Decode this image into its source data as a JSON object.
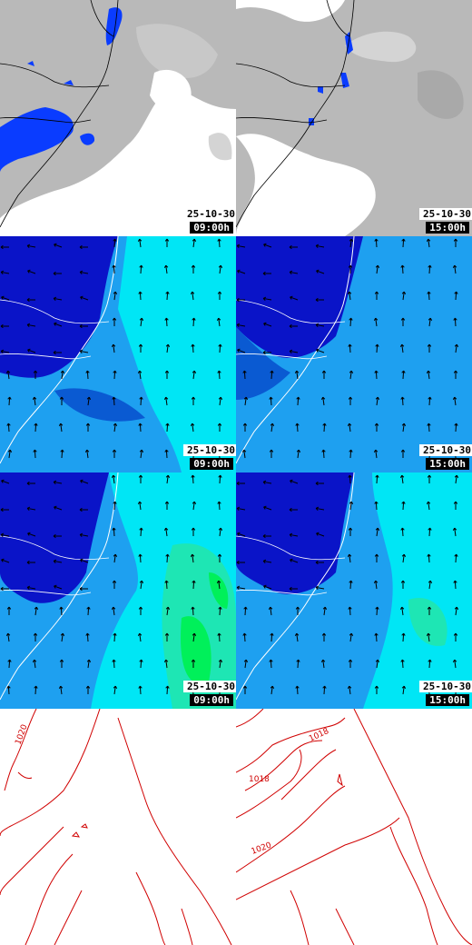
{
  "stamps": {
    "r1c1": {
      "date": "25-10-30",
      "time": "09:00h"
    },
    "r1c2": {
      "date": "25-10-30",
      "time": "15:00h"
    },
    "r2c1": {
      "date": "25-10-30",
      "time": "09:00h"
    },
    "r2c2": {
      "date": "25-10-30",
      "time": "15:00h"
    },
    "r3c1": {
      "date": "25-10-30",
      "time": "09:00h"
    },
    "r3c2": {
      "date": "25-10-30",
      "time": "15:00h"
    }
  },
  "isobar_labels": {
    "left_1020": "1020",
    "right_1018a": "1018",
    "right_1018b": "1018",
    "right_1020": "1020"
  },
  "colors": {
    "cloud": "#b9b9b9",
    "precip": "#0a3cff",
    "wind_dark": "#0a14c8",
    "wind_mid": "#0a5ad2",
    "wind_light": "#1ea0f0",
    "wind_cyan": "#00e6f5",
    "wind_green": "#00f05a",
    "isobar": "#d00000"
  }
}
